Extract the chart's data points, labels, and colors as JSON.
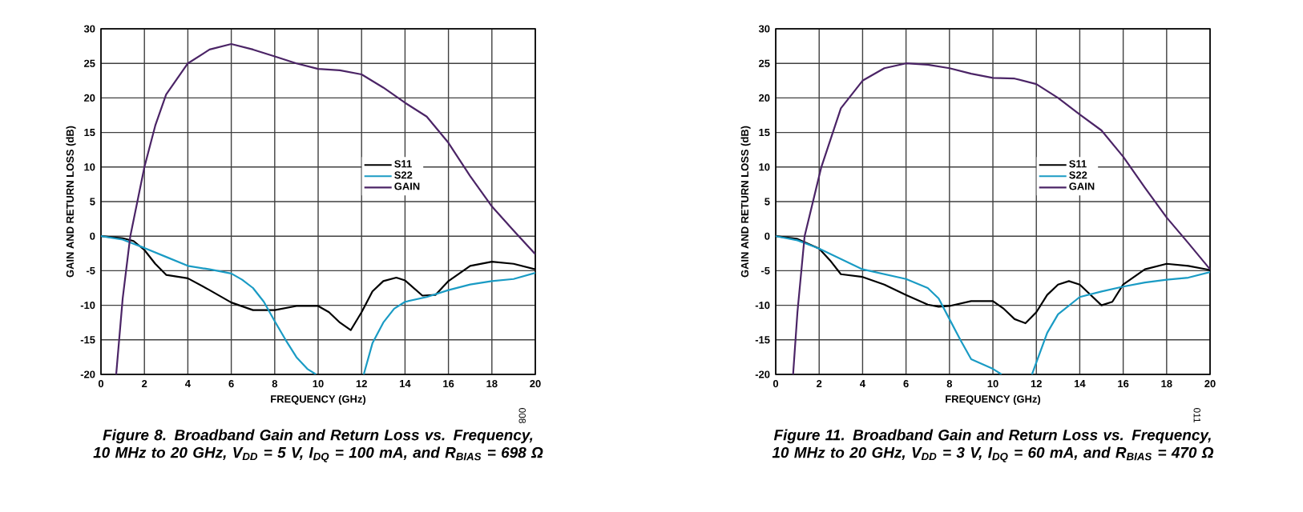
{
  "chart_data": [
    {
      "type": "line",
      "title": "Figure 8. Broadband Gain and Return Loss vs. Frequency, 10 MHz to 20 GHz, V$_{DD}$ = 5 V, I$_{DQ}$ = 100 mA, and R$_{BIAS}$ = 698 Ω",
      "xlabel": "FREQUENCY (GHz)",
      "ylabel": "GAIN AND RETURN LOSS (dB)",
      "annotations": [
        "008"
      ],
      "xlim": [
        0,
        20
      ],
      "ylim": [
        -20,
        30
      ],
      "xticks": [
        0,
        2,
        4,
        6,
        8,
        10,
        12,
        14,
        16,
        18,
        20
      ],
      "yticks": [
        -20,
        -15,
        -10,
        -5,
        0,
        5,
        10,
        15,
        20,
        25,
        30
      ],
      "grid": true,
      "legend": "right",
      "series": [
        {
          "name": "S11",
          "color": "#000000",
          "x": [
            0,
            1,
            1.5,
            2,
            2.5,
            3,
            4,
            5,
            6,
            7,
            8,
            9,
            10,
            10.5,
            11,
            11.5,
            12,
            12.5,
            13,
            13.6,
            14,
            14.8,
            15.4,
            16,
            17,
            18,
            19,
            20
          ],
          "values": [
            0,
            -0.3,
            -0.7,
            -2,
            -4,
            -5.6,
            -6.1,
            -7.8,
            -9.6,
            -10.7,
            -10.7,
            -10.1,
            -10.1,
            -11,
            -12.5,
            -13.6,
            -11,
            -8,
            -6.5,
            -6,
            -6.4,
            -8.6,
            -8.5,
            -6.5,
            -4.3,
            -3.7,
            -4,
            -4.8
          ]
        },
        {
          "name": "S22",
          "color": "#1a9bc4",
          "x": [
            0,
            1,
            2,
            3,
            4,
            5,
            6,
            6.5,
            7,
            7.5,
            8,
            8.5,
            9,
            9.5,
            9.9,
            11,
            12.1,
            12.5,
            13,
            13.5,
            14,
            15,
            16,
            17,
            18,
            19,
            20
          ],
          "values": [
            0,
            -0.5,
            -1.7,
            -3,
            -4.3,
            -4.8,
            -5.4,
            -6.3,
            -7.5,
            -9.5,
            -12.3,
            -15,
            -17.5,
            -19.2,
            -20,
            null,
            -20,
            -15.5,
            -12.5,
            -10.5,
            -9.5,
            -8.8,
            -7.8,
            -7,
            -6.5,
            -6.2,
            -5.3
          ]
        },
        {
          "name": "GAIN",
          "color": "#4b2466",
          "x": [
            0.7,
            1,
            1.35,
            2,
            2.5,
            3,
            4,
            5,
            6,
            7,
            8,
            9,
            10,
            11,
            12,
            13,
            14,
            15,
            16,
            17,
            18,
            19,
            20
          ],
          "values": [
            -20,
            -9,
            0,
            10,
            16,
            20.5,
            25,
            27,
            27.8,
            27,
            26,
            25,
            24.2,
            24,
            23.4,
            21.5,
            19.3,
            17.3,
            13.5,
            8.7,
            4.3,
            0.8,
            -2.6
          ]
        }
      ]
    },
    {
      "type": "line",
      "title": "Figure 11. Broadband Gain and Return Loss vs. Frequency, 10 MHz to 20 GHz, V$_{DD}$ = 3 V, I$_{DQ}$ = 60 mA, and R$_{BIAS}$ = 470 Ω",
      "xlabel": "FREQUENCY (GHz)",
      "ylabel": "GAIN AND RETURN LOSS (dB)",
      "annotations": [
        "011"
      ],
      "xlim": [
        0,
        20
      ],
      "ylim": [
        -20,
        30
      ],
      "xticks": [
        0,
        2,
        4,
        6,
        8,
        10,
        12,
        14,
        16,
        18,
        20
      ],
      "yticks": [
        -20,
        -15,
        -10,
        -5,
        0,
        5,
        10,
        15,
        20,
        25,
        30
      ],
      "grid": true,
      "legend": "right",
      "series": [
        {
          "name": "S11",
          "color": "#000000",
          "x": [
            0,
            1,
            2,
            2.5,
            3,
            4,
            5,
            6,
            7,
            7.5,
            8,
            9,
            10,
            10.5,
            11,
            11.5,
            12,
            12.5,
            13,
            13.5,
            14,
            14.6,
            15,
            15.5,
            16,
            17,
            18,
            19,
            20
          ],
          "values": [
            0,
            -0.4,
            -1.8,
            -3.5,
            -5.5,
            -5.9,
            -7,
            -8.5,
            -9.9,
            -10.2,
            -10.1,
            -9.4,
            -9.4,
            -10.5,
            -12,
            -12.6,
            -11,
            -8.5,
            -7,
            -6.5,
            -7,
            -8.8,
            -10,
            -9.5,
            -7,
            -4.8,
            -4,
            -4.3,
            -4.9
          ]
        },
        {
          "name": "S22",
          "color": "#1a9bc4",
          "x": [
            0,
            1,
            2,
            3,
            4,
            5,
            6,
            7,
            7.5,
            8,
            8.5,
            9,
            10,
            10.4,
            11,
            11.8,
            12.5,
            13,
            14,
            15,
            16,
            17,
            18,
            19,
            20
          ],
          "values": [
            0,
            -0.6,
            -1.8,
            -3.3,
            -4.8,
            -5.5,
            -6.2,
            -7.5,
            -9,
            -12,
            -15,
            -17.8,
            -19.2,
            -20,
            null,
            -20,
            -14,
            -11.3,
            -8.8,
            -8,
            -7.3,
            -6.7,
            -6.3,
            -6,
            -5.2
          ]
        },
        {
          "name": "GAIN",
          "color": "#4b2466",
          "x": [
            0.8,
            1,
            1.33,
            2.1,
            3,
            4,
            5,
            6,
            7,
            8,
            9,
            10,
            11,
            12,
            13,
            14,
            15,
            16,
            17,
            18,
            19,
            20
          ],
          "values": [
            -20,
            -11,
            0,
            10,
            18.5,
            22.5,
            24.3,
            25,
            24.8,
            24.3,
            23.5,
            22.9,
            22.8,
            22,
            20,
            17.6,
            15.3,
            11.5,
            7,
            2.7,
            -1,
            -4.8
          ]
        }
      ]
    }
  ]
}
